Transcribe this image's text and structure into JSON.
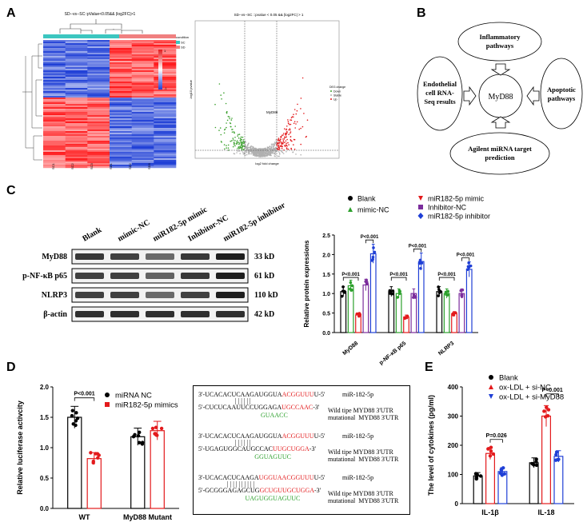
{
  "panels": {
    "a": "A",
    "b": "B",
    "c": "C",
    "d": "D",
    "e": "E"
  },
  "heatmap": {
    "title": "SD--vs--SC::pValue<0.05&& |log2FC|>1",
    "legend_title": "condition",
    "legend_items": [
      "SC",
      "SD"
    ],
    "scale_max": "1",
    "scale_min": "-1",
    "columns": [
      "SC1",
      "SC2",
      "SC3",
      "SD1",
      "SD2",
      "SD3"
    ]
  },
  "volcano": {
    "title": "SD--vs--SC ::pvalue < 0.05 && |log2FC| > 1",
    "xlabel": "log2 fold change",
    "ylabel": "-log10 pvalue",
    "gene_label": "MyD88",
    "legend_title": "DEG change",
    "legend_items": [
      "Down",
      "Stable",
      "Up"
    ],
    "colors": {
      "down": "#3aa02c",
      "stable": "#b0b0b0",
      "up": "#e31a1c"
    }
  },
  "pathway": {
    "center": "MyD88",
    "top": "Inflammatory\npathways",
    "left": "Endothelial\ncell RNA-\nSeq results",
    "right": "Apoptotic\npathways",
    "bottom": "Agilent miRNA target\nprediction"
  },
  "blot": {
    "lanes": [
      "Blank",
      "mimic-NC",
      "miR182-5p mimic",
      "Inhibitor-NC",
      "miR182-5p  inhibitor"
    ],
    "proteins": [
      {
        "name": "MyD88",
        "size": "33 kD",
        "intensity": [
          0.85,
          0.8,
          0.55,
          0.85,
          1.0
        ]
      },
      {
        "name": "p-NF-κB p65",
        "size": "61 kD",
        "intensity": [
          0.8,
          0.8,
          0.6,
          0.85,
          1.0
        ]
      },
      {
        "name": "NLRP3",
        "size": "110 kD",
        "intensity": [
          0.8,
          0.8,
          0.55,
          0.8,
          1.0
        ]
      },
      {
        "name": "β-actin",
        "size": "42 kD",
        "intensity": [
          0.9,
          0.9,
          0.9,
          0.9,
          0.9
        ]
      }
    ]
  },
  "chart_data": [
    {
      "id": "c",
      "type": "bar",
      "ylabel": "Relative protein expressions",
      "ylim": [
        0,
        2.5
      ],
      "yticks": [
        "0.0",
        "0.5",
        "1.0",
        "1.5",
        "2.0",
        "2.5"
      ],
      "categories": [
        "MyD88",
        "p-NF-κB p65",
        "NLRP3"
      ],
      "series": [
        {
          "name": "Blank",
          "color": "#000000",
          "values": [
            1.05,
            1.05,
            1.05
          ]
        },
        {
          "name": "mimic-NC",
          "color": "#2ca02c",
          "values": [
            1.2,
            1.0,
            1.0
          ]
        },
        {
          "name": "miR182-5p mimic",
          "color": "#e31a1c",
          "values": [
            0.45,
            0.4,
            0.48
          ]
        },
        {
          "name": "Inhibitor-NC",
          "color": "#7b2d9c",
          "values": [
            1.22,
            1.0,
            1.0
          ]
        },
        {
          "name": "miR182-5p inhibitor",
          "color": "#1f3fd6",
          "values": [
            2.02,
            1.82,
            1.62
          ]
        }
      ],
      "annotations": [
        "P<0.001",
        "P<0.001",
        "P<0.001",
        "P<0.001",
        "P<0.001",
        "P<0.001"
      ]
    },
    {
      "id": "d",
      "type": "bar",
      "ylabel": "Relative luciferase activcity",
      "ylim": [
        0,
        2.0
      ],
      "yticks": [
        "0.0",
        "0.5",
        "1.0",
        "1.5",
        "2.0"
      ],
      "categories": [
        "WT",
        "MyD88 Mutant"
      ],
      "series": [
        {
          "name": "miRNA NC",
          "color": "#000000",
          "values": [
            1.5,
            1.18
          ]
        },
        {
          "name": "miR182-5p mimics",
          "color": "#e31a1c",
          "values": [
            0.82,
            1.28
          ]
        }
      ],
      "annotations": [
        "P<0.001"
      ]
    },
    {
      "id": "e",
      "type": "bar",
      "ylabel": "The level of cytokines (pg/ml)",
      "ylim": [
        0,
        400
      ],
      "yticks": [
        "0",
        "100",
        "200",
        "300",
        "400"
      ],
      "categories": [
        "IL-1β",
        "IL-18"
      ],
      "series": [
        {
          "name": "Blank",
          "color": "#000000",
          "values": [
            95,
            140
          ]
        },
        {
          "name": "ox-LDL + si-NC",
          "color": "#e31a1c",
          "values": [
            172,
            300
          ]
        },
        {
          "name": "ox-LDL + si-MyD88",
          "color": "#1f3fd6",
          "values": [
            110,
            162
          ]
        }
      ],
      "annotations": [
        "P=0.026",
        "P<0.001"
      ]
    }
  ],
  "sequences": [
    {
      "line1_a": "3'-UCACACUCAAGAUGGUA",
      "line1_b": "ACGGUUU",
      "line1_c": "U-5'",
      "label1": "miR-182-5p",
      "line2_a": "5'-CUCUCAAUUCCUGGAGA",
      "line2_b": "UGCCAAC",
      "line2_c": "-3'",
      "label2": "Wild tipe MYD88 3'UTR",
      "line3": "GUAACC",
      "label3": "mutational  MYD88 3'UTR"
    },
    {
      "line1_a": "3'-UCACACUCAAGAUGGUA",
      "line1_b": "ACGGUUU",
      "line1_c": "U-5'",
      "label1": "miR-182-5p",
      "line2_a": "5'-UGAGUGGCAUGCCAC",
      "line2_b": "UUGCUGGA",
      "line2_c": "-3'",
      "label2": "Wild tipe MYD88 3'UTR",
      "line3": "GGUAGUUC",
      "label3": "mutational  MYD88 3'UTR"
    },
    {
      "line1_a": "3'-UCACACUCAAGA",
      "line1_b": "UGGUAACGGUUU",
      "line1_c": "U-5'",
      "label1": "miR-182-5p",
      "line2_a": "5'-GCGGGAGAGCUG",
      "line2_b": "GCUGUUGCUGGA",
      "line2_c": "-3'",
      "label2": "Wild tipe MYD88 3'UTR",
      "line3": "UAGUGGUAGUUC",
      "label3": "mutational  MYD88 3'UTR"
    }
  ]
}
